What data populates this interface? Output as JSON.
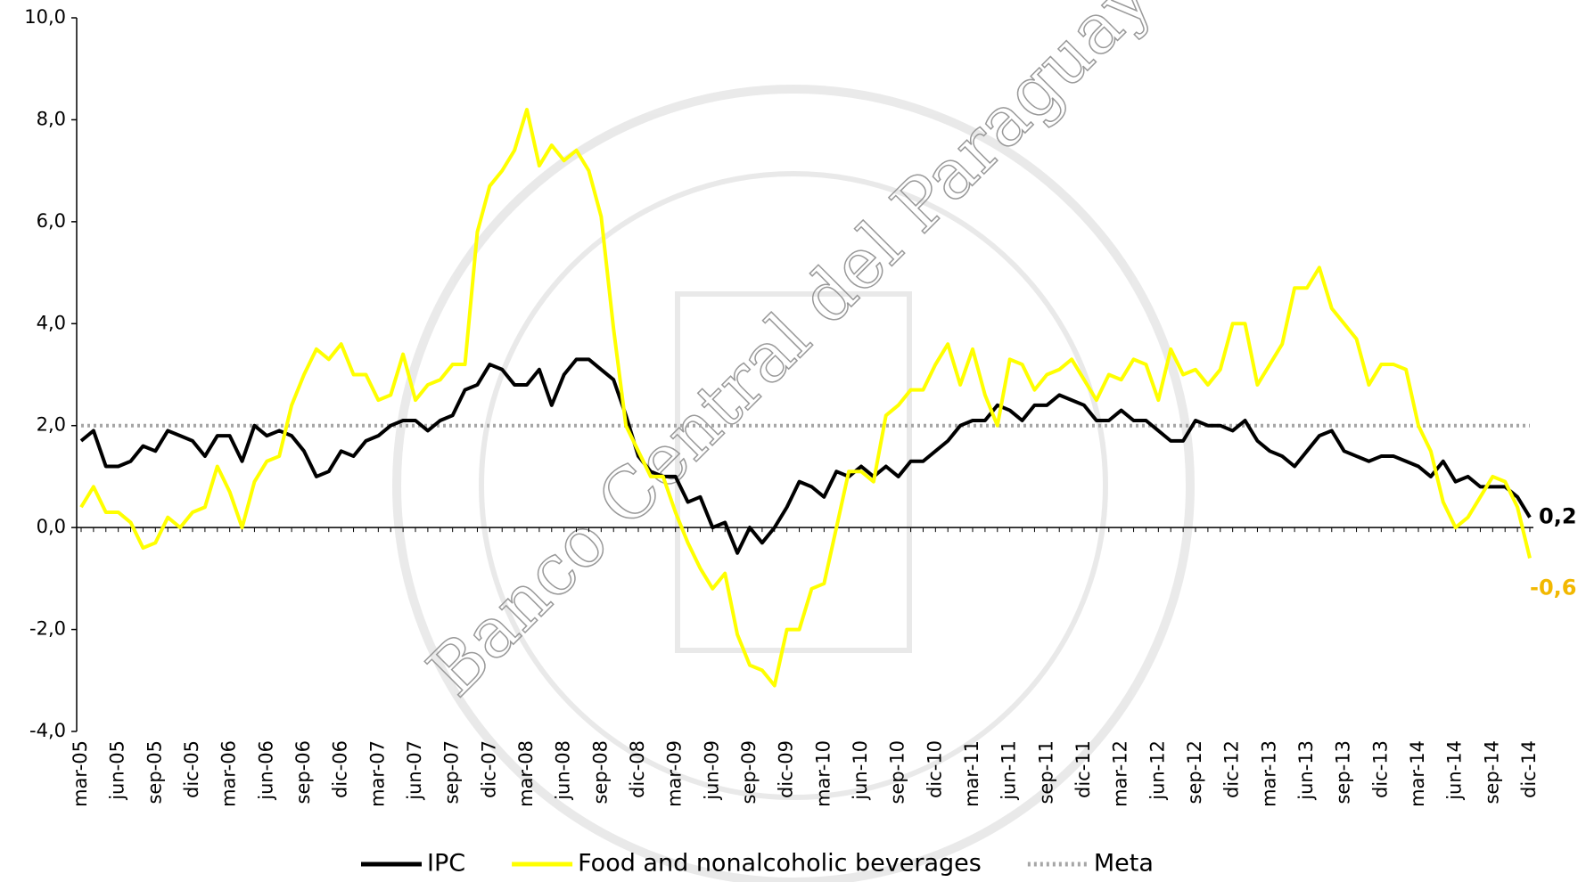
{
  "chart_data": {
    "type": "line",
    "watermark": "Banco Central del Paraguay",
    "categories": [
      "mar-05",
      null,
      null,
      "jun-05",
      null,
      null,
      "sep-05",
      null,
      null,
      "dic-05",
      null,
      null,
      "mar-06",
      null,
      null,
      "jun-06",
      null,
      null,
      "sep-06",
      null,
      null,
      "dic-06",
      null,
      null,
      "mar-07",
      null,
      null,
      "jun-07",
      null,
      null,
      "sep-07",
      null,
      null,
      "dic-07",
      null,
      null,
      "mar-08",
      null,
      null,
      "jun-08",
      null,
      null,
      "sep-08",
      null,
      null,
      "dic-08",
      null,
      null,
      "mar-09",
      null,
      null,
      "jun-09",
      null,
      null,
      "sep-09",
      null,
      null,
      "dic-09",
      null,
      null,
      "mar-10",
      null,
      null,
      "jun-10",
      null,
      null,
      "sep-10",
      null,
      null,
      "dic-10",
      null,
      null,
      "mar-11",
      null,
      null,
      "jun-11",
      null,
      null,
      "sep-11",
      null,
      null,
      "dic-11",
      null,
      null,
      "mar-12",
      null,
      null,
      "jun-12",
      null,
      null,
      "sep-12",
      null,
      null,
      "dic-12",
      null,
      null,
      "mar-13",
      null,
      null,
      "jun-13",
      null,
      null,
      "sep-13",
      null,
      null,
      "dic-13",
      null,
      null,
      "mar-14",
      null,
      null,
      "jun-14",
      null,
      null,
      "sep-14",
      null,
      null,
      "dic-14"
    ],
    "series": [
      {
        "name": "IPC",
        "color": "#000000",
        "end_label": "0,2",
        "values": [
          1.7,
          1.9,
          1.2,
          1.2,
          1.3,
          1.6,
          1.5,
          1.9,
          1.8,
          1.7,
          1.4,
          1.8,
          1.8,
          1.3,
          2.0,
          1.8,
          1.9,
          1.8,
          1.5,
          1.0,
          1.1,
          1.5,
          1.4,
          1.7,
          1.8,
          2.0,
          2.1,
          2.1,
          1.9,
          2.1,
          2.2,
          2.7,
          2.8,
          3.2,
          3.1,
          2.8,
          2.8,
          3.1,
          2.4,
          3.0,
          3.3,
          3.3,
          3.1,
          2.9,
          2.2,
          1.4,
          1.1,
          1.0,
          1.0,
          0.5,
          0.6,
          0.0,
          0.1,
          -0.5,
          0.0,
          -0.3,
          0.0,
          0.4,
          0.9,
          0.8,
          0.6,
          1.1,
          1.0,
          1.2,
          1.0,
          1.2,
          1.0,
          1.3,
          1.3,
          1.5,
          1.7,
          2.0,
          2.1,
          2.1,
          2.4,
          2.3,
          2.1,
          2.4,
          2.4,
          2.6,
          2.5,
          2.4,
          2.1,
          2.1,
          2.3,
          2.1,
          2.1,
          1.9,
          1.7,
          1.7,
          2.1,
          2.0,
          2.0,
          1.9,
          2.1,
          1.7,
          1.5,
          1.4,
          1.2,
          1.5,
          1.8,
          1.9,
          1.5,
          1.4,
          1.3,
          1.4,
          1.4,
          1.3,
          1.2,
          1.0,
          1.3,
          0.9,
          1.0,
          0.8,
          0.8,
          0.8,
          0.6,
          0.2
        ]
      },
      {
        "name": "Food and nonalcoholic beverages",
        "color": "#ffff00",
        "label_color": "#f2b800",
        "end_label": "-0,6",
        "values": [
          0.4,
          0.8,
          0.3,
          0.3,
          0.1,
          -0.4,
          -0.3,
          0.2,
          0.0,
          0.3,
          0.4,
          1.2,
          0.7,
          0.0,
          0.9,
          1.3,
          1.4,
          2.4,
          3.0,
          3.5,
          3.3,
          3.6,
          3.0,
          3.0,
          2.5,
          2.6,
          3.4,
          2.5,
          2.8,
          2.9,
          3.2,
          3.2,
          5.8,
          6.7,
          7.0,
          7.4,
          8.2,
          7.1,
          7.5,
          7.2,
          7.4,
          7.0,
          6.1,
          3.9,
          2.0,
          1.5,
          1.0,
          1.0,
          0.3,
          -0.3,
          -0.8,
          -1.2,
          -0.9,
          -2.1,
          -2.7,
          -2.8,
          -3.1,
          -2.0,
          -2.0,
          -1.2,
          -1.1,
          0.0,
          1.1,
          1.1,
          0.9,
          2.2,
          2.4,
          2.7,
          2.7,
          3.2,
          3.6,
          2.8,
          3.5,
          2.6,
          2.0,
          3.3,
          3.2,
          2.7,
          3.0,
          3.1,
          3.3,
          2.9,
          2.5,
          3.0,
          2.9,
          3.3,
          3.2,
          2.5,
          3.5,
          3.0,
          3.1,
          2.8,
          3.1,
          4.0,
          4.0,
          2.8,
          3.2,
          3.6,
          4.7,
          4.7,
          5.1,
          4.3,
          4.0,
          3.7,
          2.8,
          3.2,
          3.2,
          3.1,
          2.0,
          1.5,
          0.5,
          0.0,
          0.2,
          0.6,
          1.0,
          0.9,
          0.4,
          -0.6
        ]
      }
    ],
    "reference_line": {
      "name": "Meta",
      "value": 2,
      "color": "#a6a6a6"
    },
    "ylim": [
      -4,
      10
    ],
    "yticks": [
      {
        "value": -4,
        "label": "-4,0"
      },
      {
        "value": -2,
        "label": "-2,0"
      },
      {
        "value": 0,
        "label": "0,0"
      },
      {
        "value": 2,
        "label": "2,0"
      },
      {
        "value": 4,
        "label": "4,0"
      },
      {
        "value": 6,
        "label": "6,0"
      },
      {
        "value": 8,
        "label": "8,0"
      },
      {
        "value": 10,
        "label": "10,0"
      }
    ],
    "legend": "bottom"
  }
}
